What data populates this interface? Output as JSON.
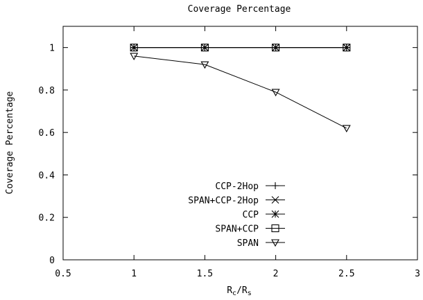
{
  "chart_data": {
    "type": "line",
    "title": "Coverage Percentage",
    "xlabel": "R",
    "xlabel_sub1": "c",
    "xlabel_sep": "/R",
    "xlabel_sub2": "s",
    "ylabel": "Coverage Percentage",
    "xlim": [
      0.5,
      3
    ],
    "ylim": [
      0,
      1.1
    ],
    "xticks": [
      0.5,
      1,
      1.5,
      2,
      2.5,
      3
    ],
    "xtick_labels": [
      "0.5",
      "1",
      "1.5",
      "2",
      "2.5",
      "3"
    ],
    "yticks": [
      0,
      0.2,
      0.4,
      0.6,
      0.8,
      1
    ],
    "ytick_labels": [
      "0",
      "0.2",
      "0.4",
      "0.6",
      "0.8",
      "1"
    ],
    "grid": false,
    "legend_position": "bottom-center",
    "series": [
      {
        "name": "CCP-2Hop",
        "marker": "plus",
        "x": [
          1,
          1.5,
          2,
          2.5
        ],
        "y": [
          1,
          1,
          1,
          1
        ]
      },
      {
        "name": "SPAN+CCP-2Hop",
        "marker": "cross",
        "x": [
          1,
          1.5,
          2,
          2.5
        ],
        "y": [
          1,
          1,
          1,
          1
        ]
      },
      {
        "name": "CCP",
        "marker": "star",
        "x": [
          1,
          1.5,
          2,
          2.5
        ],
        "y": [
          1,
          1,
          1,
          1
        ]
      },
      {
        "name": "SPAN+CCP",
        "marker": "square",
        "x": [
          1,
          1.5,
          2,
          2.5
        ],
        "y": [
          1,
          1,
          1,
          1
        ]
      },
      {
        "name": "SPAN",
        "marker": "triangle-down",
        "x": [
          1,
          1.5,
          2,
          2.5
        ],
        "y": [
          0.96,
          0.92,
          0.79,
          0.62
        ]
      }
    ]
  }
}
